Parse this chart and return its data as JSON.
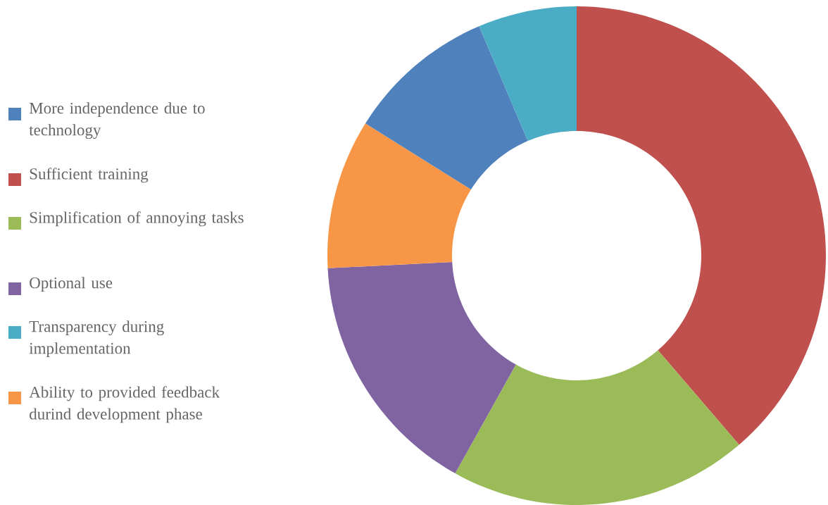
{
  "chart_data": {
    "type": "donut",
    "categories": [
      "More independence due to technology",
      "Sufficient training",
      "Simplification of annoying tasks",
      "Optional use",
      "Transparency during implementation",
      "Ability to provided feedback durind development phase"
    ],
    "values": [
      9.7,
      38.7,
      19.4,
      16.1,
      6.4,
      9.7
    ],
    "colors": [
      "#4f81bd",
      "#c0504d",
      "#9bbb59",
      "#8064a2",
      "#4bacc6",
      "#f79646"
    ],
    "legend": "left"
  }
}
